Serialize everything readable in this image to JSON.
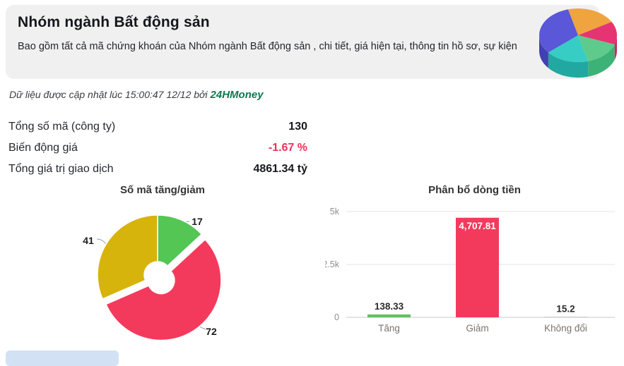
{
  "header": {
    "title": "Nhóm ngành Bất động sản",
    "subtitle": "Bao gồm tất cả mã chứng khoán của Nhóm ngành Bất động sản , chi tiết, giá hiện tại, thông tin hồ sơ, sự kiện"
  },
  "update": {
    "text": "Dữ liệu được cập nhật lúc 15:00:47 12/12 bởi",
    "brand": "24HMoney",
    "brand_color": "#0d7a4e"
  },
  "stats": {
    "rows": [
      {
        "label": "Tổng số mã (công ty)",
        "value": "130"
      },
      {
        "label": "Biến động giá",
        "value": "-1.67 %",
        "value_color": "#ee2f58"
      },
      {
        "label": "Tổng giá trị giao dịch",
        "value": "4861.34 tỷ"
      }
    ]
  },
  "chart_data": [
    {
      "type": "pie",
      "title": "Số mã tăng/giảm",
      "values": [
        17,
        72,
        41
      ],
      "labels": [
        "17",
        "72",
        "41"
      ],
      "colors": [
        "#53c653",
        "#f43a5c",
        "#d6b40c"
      ],
      "donut": true,
      "exploded_index": 1,
      "legend": "none"
    },
    {
      "type": "bar",
      "title": "Phân bổ dòng tiền",
      "categories": [
        "Tăng",
        "Giảm",
        "Không đổi"
      ],
      "values": [
        138.33,
        4707.81,
        15.2
      ],
      "value_labels": [
        "138.33",
        "4,707.81",
        "15.2"
      ],
      "colors": [
        "#62c162",
        "#f43a5c",
        "#aaaaaa"
      ],
      "ylim": [
        0,
        5000
      ],
      "yticks": [
        {
          "value": 0,
          "label": "0"
        },
        {
          "value": 2500,
          "label": "2.5k"
        },
        {
          "value": 5000,
          "label": "5k"
        }
      ],
      "grid": true,
      "legend": "none"
    }
  ]
}
